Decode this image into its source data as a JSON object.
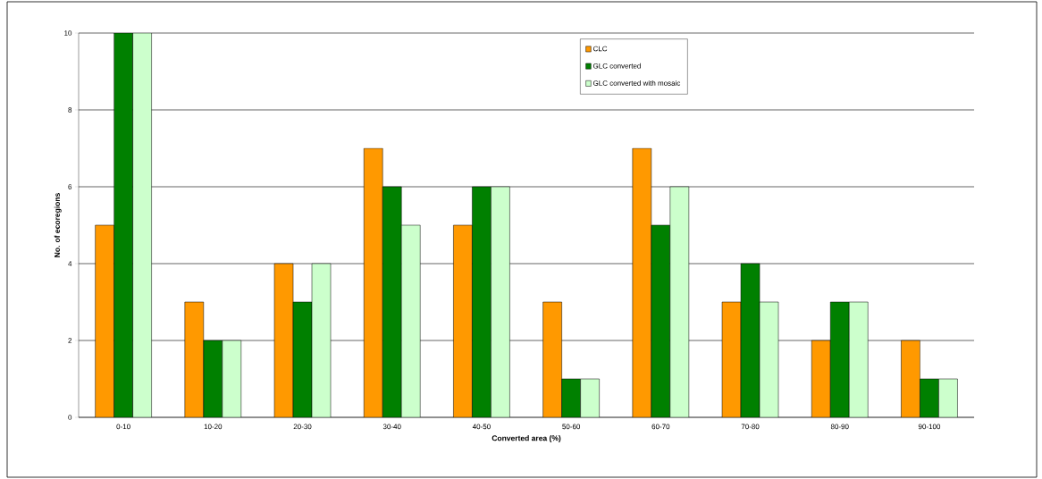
{
  "chart_data": {
    "type": "bar",
    "xlabel": "Converted area (%)",
    "ylabel": "No. of ecoregions",
    "categories": [
      "0-10",
      "10-20",
      "20-30",
      "30-40",
      "40-50",
      "50-60",
      "60-70",
      "70-80",
      "80-90",
      "90-100"
    ],
    "series": [
      {
        "name": "CLC",
        "color": "#ff9900",
        "values": [
          5,
          3,
          4,
          7,
          5,
          3,
          7,
          3,
          2,
          2
        ]
      },
      {
        "name": "GLC converted",
        "color": "#008000",
        "values": [
          10,
          2,
          3,
          6,
          6,
          1,
          5,
          4,
          3,
          1
        ]
      },
      {
        "name": "GLC converted with mosaic",
        "color": "#ccffcc",
        "values": [
          10,
          2,
          4,
          5,
          6,
          1,
          6,
          3,
          3,
          1
        ]
      }
    ],
    "ylim": [
      0,
      10
    ],
    "yticks": [
      0,
      2,
      4,
      6,
      8,
      10
    ],
    "grid": "y",
    "legend": "top right"
  }
}
